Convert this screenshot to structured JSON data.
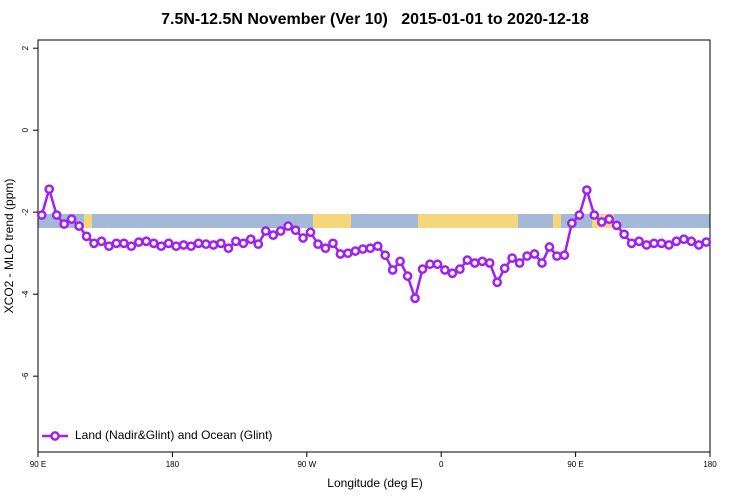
{
  "chart_data": {
    "type": "line",
    "title": "7.5N-12.5N November (Ver 10)   2015-01-01 to 2020-12-18",
    "x_label": "Longitude (deg E)",
    "y_label": "XCO2 - MLO trend (ppm)",
    "x": [
      92.5,
      97.5,
      102.5,
      107.5,
      112.5,
      117.5,
      122.5,
      127.5,
      132.5,
      137.5,
      142.5,
      147.5,
      152.5,
      157.5,
      162.5,
      167.5,
      172.5,
      177.5,
      182.5,
      187.5,
      192.5,
      197.5,
      202.5,
      207.5,
      212.5,
      217.5,
      222.5,
      227.5,
      232.5,
      237.5,
      242.5,
      247.5,
      252.5,
      257.5,
      262.5,
      267.5,
      272.5,
      277.5,
      282.5,
      287.5,
      292.5,
      297.5,
      302.5,
      307.5,
      312.5,
      317.5,
      322.5,
      327.5,
      332.5,
      337.5,
      342.5,
      347.5,
      352.5,
      357.5,
      362.5,
      367.5,
      372.5,
      377.5,
      382.5,
      387.5,
      392.5,
      397.5,
      402.5,
      407.5,
      412.5,
      417.5,
      422.5,
      427.5,
      432.5,
      437.5,
      442.5,
      447.5,
      452.5,
      457.5,
      462.5,
      467.5,
      472.5,
      477.5,
      482.5,
      487.5,
      492.5,
      497.5,
      502.5,
      507.5,
      512.5,
      517.5,
      522.5,
      527.5,
      532.5,
      537.5
    ],
    "series": [
      {
        "name": "Land (Nadir&Glint) and Ocean (Glint)",
        "color": "#a020f0",
        "values": [
          -2.07,
          -1.44,
          -2.07,
          -2.29,
          -2.17,
          -2.34,
          -2.59,
          -2.76,
          -2.71,
          -2.83,
          -2.76,
          -2.76,
          -2.83,
          -2.73,
          -2.71,
          -2.76,
          -2.83,
          -2.76,
          -2.83,
          -2.8,
          -2.83,
          -2.76,
          -2.78,
          -2.8,
          -2.76,
          -2.88,
          -2.71,
          -2.76,
          -2.66,
          -2.78,
          -2.46,
          -2.56,
          -2.46,
          -2.34,
          -2.44,
          -2.63,
          -2.49,
          -2.78,
          -2.88,
          -2.76,
          -3.02,
          -3.0,
          -2.95,
          -2.9,
          -2.88,
          -2.83,
          -3.05,
          -3.41,
          -3.2,
          -3.56,
          -4.1,
          -3.39,
          -3.27,
          -3.27,
          -3.41,
          -3.49,
          -3.39,
          -3.17,
          -3.24,
          -3.2,
          -3.24,
          -3.71,
          -3.37,
          -3.12,
          -3.24,
          -3.07,
          -3.02,
          -3.24,
          -2.85,
          -3.07,
          -3.05,
          -2.27,
          -2.07,
          -1.46,
          -2.07,
          -2.24,
          -2.17,
          -2.32,
          -2.54,
          -2.76,
          -2.71,
          -2.8,
          -2.76,
          -2.76,
          -2.8,
          -2.71,
          -2.66,
          -2.71,
          -2.8,
          -2.73
        ]
      }
    ],
    "xlim": [
      90,
      540
    ],
    "xticks": [
      {
        "value": 90,
        "label": "90 E"
      },
      180,
      {
        "value": 270,
        "label": "90 W"
      },
      {
        "value": 360,
        "label": "0"
      },
      {
        "value": 450,
        "label": "90 E"
      },
      {
        "value": 540,
        "label": "180"
      }
    ],
    "ylim": [
      -7.85,
      2.2
    ],
    "yticks": [
      2,
      0,
      -2,
      -4,
      -6
    ],
    "legend": "bottom-left"
  }
}
